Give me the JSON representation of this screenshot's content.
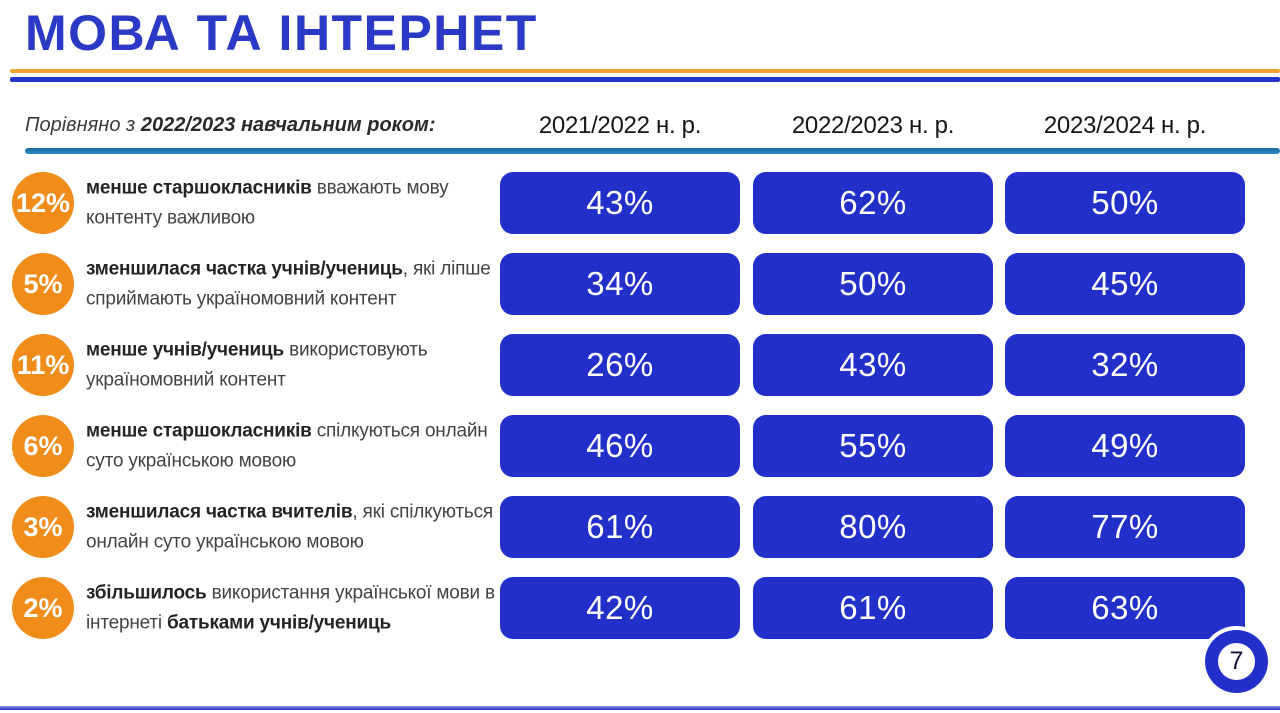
{
  "slide": {
    "title": "МОВА ТА ІНТЕРНЕТ",
    "subtitle_prefix": "Порівняно з ",
    "subtitle_bold": "2022/2023 навчальним роком:",
    "page_number": "7"
  },
  "colors": {
    "title_blue": "#2b3ac6",
    "pill_blue": "#2230c9",
    "badge_orange": "#ef8c1a",
    "divider_orange": "#efa32e",
    "divider_blue": "#2433cb",
    "header_underline": "#2e8ac5"
  },
  "columns": [
    "2021/2022 н. р.",
    "2022/2023 н. р.",
    "2023/2024 н. р."
  ],
  "rows": [
    {
      "badge": "12%",
      "segments": [
        {
          "text": "менше старшокласників",
          "bold": true
        },
        {
          "text": " вважають мову контенту важливою",
          "bold": false
        }
      ],
      "values": [
        "43%",
        "62%",
        "50%"
      ]
    },
    {
      "badge": "5%",
      "segments": [
        {
          "text": "зменшилася частка учнів/учениць",
          "bold": true
        },
        {
          "text": ", які ліпше сприймають україномовний контент",
          "bold": false
        }
      ],
      "values": [
        "34%",
        "50%",
        "45%"
      ]
    },
    {
      "badge": "11%",
      "segments": [
        {
          "text": "менше учнів/учениць",
          "bold": true
        },
        {
          "text": " використовують україномовний контент",
          "bold": false
        }
      ],
      "values": [
        "26%",
        "43%",
        "32%"
      ]
    },
    {
      "badge": "6%",
      "segments": [
        {
          "text": "менше старшокласників",
          "bold": true
        },
        {
          "text": " спілкуються онлайн суто українською мовою",
          "bold": false
        }
      ],
      "values": [
        "46%",
        "55%",
        "49%"
      ]
    },
    {
      "badge": "3%",
      "segments": [
        {
          "text": "зменшилася частка вчителів",
          "bold": true
        },
        {
          "text": ", які спілкуються онлайн суто українською мовою",
          "bold": false
        }
      ],
      "values": [
        "61%",
        "80%",
        "77%"
      ]
    },
    {
      "badge": "2%",
      "segments": [
        {
          "text": "збільшилось",
          "bold": true
        },
        {
          "text": " використання української мови в інтернеті ",
          "bold": false
        },
        {
          "text": "батьками учнів/учениць",
          "bold": true
        }
      ],
      "values": [
        "42%",
        "61%",
        "63%"
      ]
    }
  ],
  "chart_data": {
    "type": "table",
    "title": "МОВА ТА ІНТЕРНЕТ",
    "subtitle": "Порівняно з 2022/2023 навчальним роком:",
    "columns": [
      "2021/2022 н. р.",
      "2022/2023 н. р.",
      "2023/2024 н. р."
    ],
    "rows": [
      {
        "change": "12%",
        "label": "менше старшокласників вважають мову контенту важливою",
        "values": [
          43,
          62,
          50
        ]
      },
      {
        "change": "5%",
        "label": "зменшилася частка учнів/учениць, які ліпше сприймають україномовний контент",
        "values": [
          34,
          50,
          45
        ]
      },
      {
        "change": "11%",
        "label": "менше учнів/учениць використовують україномовний контент",
        "values": [
          26,
          43,
          32
        ]
      },
      {
        "change": "6%",
        "label": "менше старшокласників спілкуються онлайн суто українською мовою",
        "values": [
          46,
          55,
          49
        ]
      },
      {
        "change": "3%",
        "label": "зменшилася частка вчителів, які спілкуються онлайн суто українською мовою",
        "values": [
          61,
          80,
          77
        ]
      },
      {
        "change": "2%",
        "label": "збільшилось використання української мови в інтернеті батьками учнів/учениць",
        "values": [
          42,
          61,
          63
        ]
      }
    ],
    "values_unit": "%",
    "page_number": "7"
  }
}
